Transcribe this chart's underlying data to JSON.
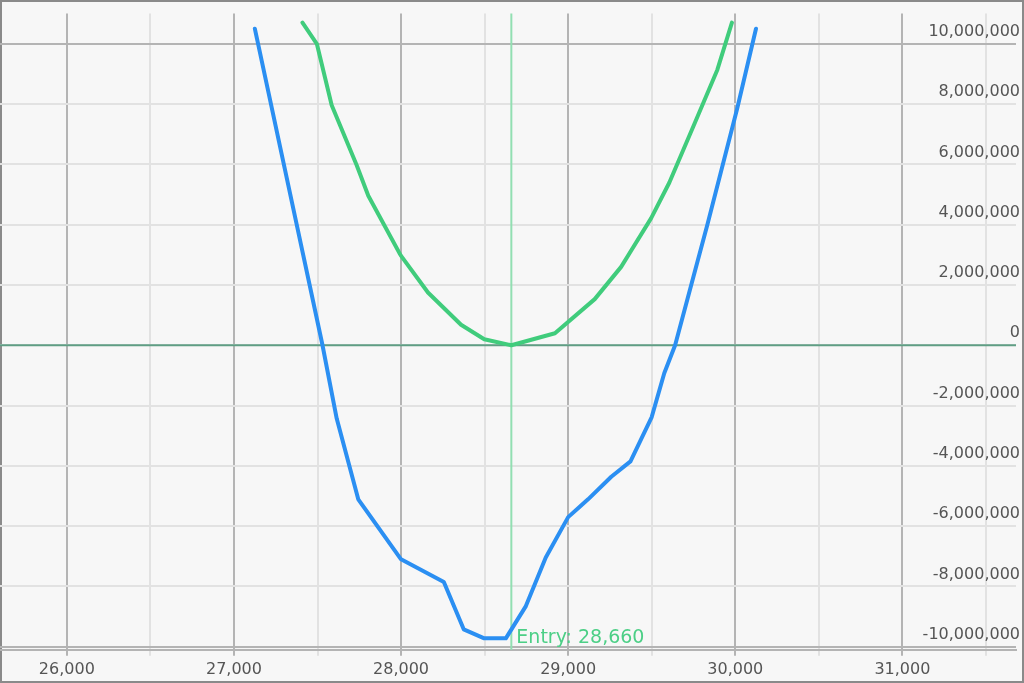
{
  "chart_data": {
    "type": "line",
    "xlim": [
      25600,
      31680
    ],
    "ylim": [
      -10100000,
      11000000
    ],
    "xticks": [
      {
        "value": 26000,
        "label": "26,000"
      },
      {
        "value": 26500,
        "label": null
      },
      {
        "value": 27000,
        "label": "27,000"
      },
      {
        "value": 27500,
        "label": null
      },
      {
        "value": 28000,
        "label": "28,000"
      },
      {
        "value": 28500,
        "label": null
      },
      {
        "value": 29000,
        "label": "29,000"
      },
      {
        "value": 29500,
        "label": null
      },
      {
        "value": 30000,
        "label": "30,000"
      },
      {
        "value": 30500,
        "label": null
      },
      {
        "value": 31000,
        "label": "31,000"
      },
      {
        "value": 31500,
        "label": null
      }
    ],
    "yticks": [
      {
        "value": -10000000,
        "label": "-10,000,000"
      },
      {
        "value": -8000000,
        "label": "-8,000,000"
      },
      {
        "value": -6000000,
        "label": "-6,000,000"
      },
      {
        "value": -4000000,
        "label": "-4,000,000"
      },
      {
        "value": -2000000,
        "label": "-2,000,000"
      },
      {
        "value": 0,
        "label": "0"
      },
      {
        "value": 2000000,
        "label": "2,000,000"
      },
      {
        "value": 4000000,
        "label": "4,000,000"
      },
      {
        "value": 6000000,
        "label": "6,000,000"
      },
      {
        "value": 8000000,
        "label": "8,000,000"
      },
      {
        "value": 10000000,
        "label": "10,000,000"
      }
    ],
    "grid": true,
    "legend": false,
    "marker": "none",
    "line_style": "solid",
    "series": [
      {
        "color": "#2b8ff2",
        "x": [
          27125,
          27530,
          27615,
          27744,
          28000,
          28256,
          28375,
          28498,
          28627,
          28747,
          28866,
          29000,
          29119,
          29258,
          29373,
          29500,
          29575,
          29640,
          29833,
          30012,
          30124
        ],
        "values": [
          10500000,
          0,
          -2430000,
          -5110000,
          -7100000,
          -7850000,
          -9420000,
          -9720000,
          -9720000,
          -8650000,
          -7040000,
          -5700000,
          -5110000,
          -4360000,
          -3850000,
          -2380000,
          -930000,
          0,
          4000000,
          7860000,
          10500000
        ]
      },
      {
        "color": "#40cc7c",
        "x": [
          27410,
          27496,
          27585,
          27734,
          27804,
          27998,
          28161,
          28359,
          28498,
          28660,
          28921,
          29159,
          29317,
          29496,
          29605,
          29754,
          29893,
          29980
        ],
        "values": [
          10700000,
          10000000,
          7960000,
          5980000,
          4960000,
          2980000,
          1750000,
          680000,
          200000,
          0,
          400000,
          1530000,
          2600000,
          4210000,
          5390000,
          7320000,
          9140000,
          10700000
        ]
      }
    ],
    "ref_lines": [
      {
        "axis": "y",
        "value": 0,
        "color": "#5f9e84"
      },
      {
        "axis": "x",
        "value": 28660,
        "label": "Entry: 28,660",
        "color": "#92dfb2"
      }
    ]
  }
}
